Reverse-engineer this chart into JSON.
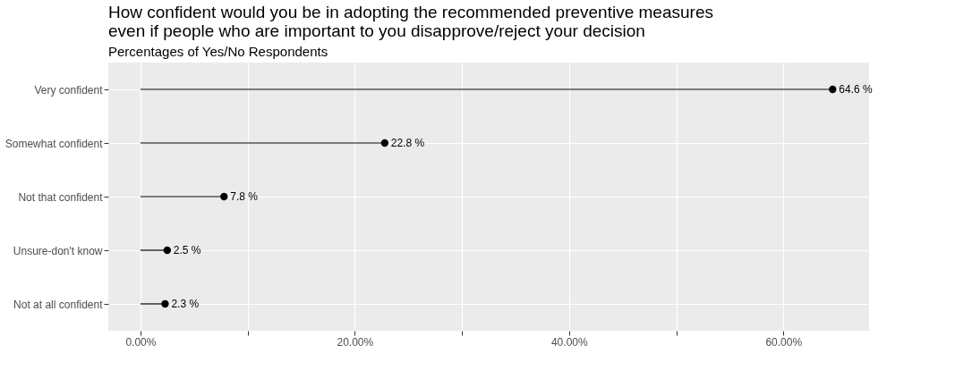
{
  "chart_data": {
    "type": "lollipop",
    "orientation": "horizontal",
    "title": [
      "How confident would you be in adopting the recommended preventive measures",
      "even if people who are important to you disapprove/reject your decision"
    ],
    "subtitle": "Percentages of Yes/No Respondents",
    "categories": [
      "Very confident",
      "Somewhat confident",
      "Not that confident",
      "Unsure-don't know",
      "Not at all confident"
    ],
    "values": [
      64.6,
      22.8,
      7.8,
      2.5,
      2.3
    ],
    "value_labels": [
      "64.6 %",
      "22.8 %",
      "7.8 %",
      "2.5 %",
      "2.3 %"
    ],
    "color": "#000000",
    "xlim": [
      -3,
      68
    ],
    "xticks": [
      {
        "value": 0,
        "label": "0.00%"
      },
      {
        "value": 10,
        "label": null
      },
      {
        "value": 20,
        "label": "20.00%"
      },
      {
        "value": 30,
        "label": null
      },
      {
        "value": 40,
        "label": "40.00%"
      },
      {
        "value": 50,
        "label": null
      },
      {
        "value": 60,
        "label": "60.00%"
      }
    ],
    "grid": true,
    "marker": "circle"
  }
}
